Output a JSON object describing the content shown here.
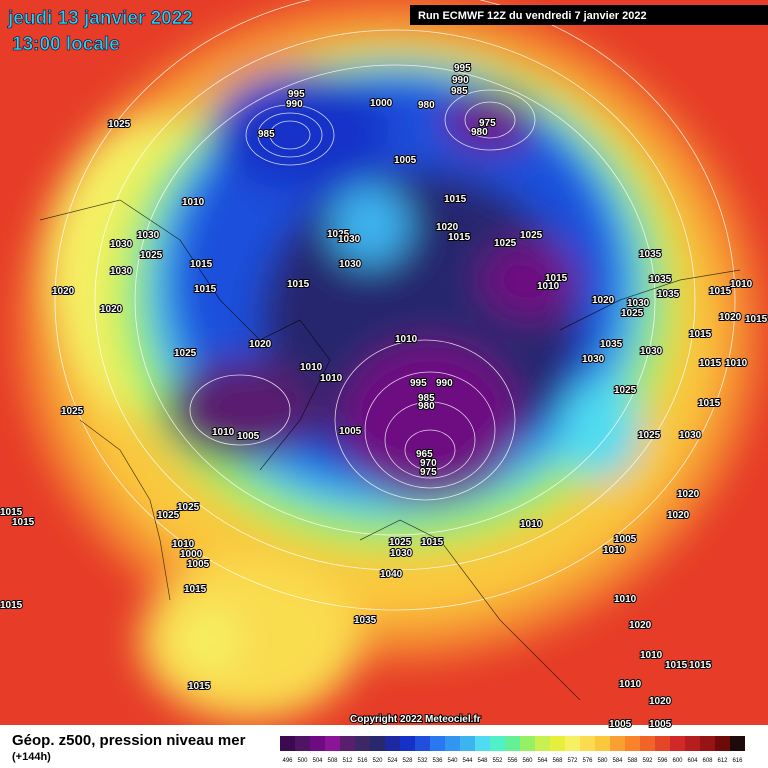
{
  "header": {
    "date": "jeudi 13 janvier 2022",
    "time": "13:00 locale",
    "run": "Run ECMWF 12Z du vendredi 7 janvier 2022"
  },
  "copyright": "Copyright 2022 Meteociel.fr",
  "footer": {
    "title": "Géop. z500, pression niveau mer",
    "lead": "(+144h)"
  },
  "colorbar": {
    "ticks": [
      496,
      500,
      504,
      508,
      512,
      516,
      520,
      524,
      528,
      532,
      536,
      540,
      544,
      548,
      552,
      556,
      560,
      564,
      568,
      572,
      576,
      580,
      584,
      588,
      592,
      596,
      600,
      604,
      608,
      612,
      616
    ],
    "colors": [
      "#3c0a50",
      "#501464",
      "#6e0a82",
      "#8c1496",
      "#5a1e6e",
      "#3c2864",
      "#28286e",
      "#1e28a0",
      "#1432c8",
      "#1e50dc",
      "#2878f0",
      "#3296f0",
      "#3cb4f0",
      "#50dcf0",
      "#50f0c8",
      "#64f096",
      "#96f064",
      "#c8f050",
      "#e6f03c",
      "#f5f064",
      "#fadc50",
      "#fac83c",
      "#faa032",
      "#fa8228",
      "#f06428",
      "#e64628",
      "#d22828",
      "#b41e1e",
      "#961414",
      "#6e0a0a",
      "#1e0a0a"
    ]
  },
  "isobar_labels": [
    1025,
    995,
    990,
    985,
    1000,
    995,
    990,
    985,
    980,
    975,
    980,
    1005,
    1010,
    1015,
    1030,
    1030,
    1025,
    1030,
    1015,
    1015,
    1020,
    1020,
    1025,
    1030,
    1020,
    1015,
    1025,
    1025,
    1030,
    1015,
    1015,
    1010,
    1035,
    1035,
    1035,
    1030,
    1025,
    1020,
    1015,
    1010,
    1020,
    1015,
    1015,
    1010,
    1035,
    1030,
    1030,
    1015,
    1025,
    1020,
    1010,
    1010,
    1010,
    995,
    990,
    985,
    980,
    1025,
    1015,
    1025,
    1010,
    1005,
    1005,
    965,
    970,
    975,
    1025,
    1030,
    1020,
    1020,
    1025,
    1025,
    1015,
    1015,
    1010,
    1010,
    1000,
    1005,
    1025,
    1015,
    1030,
    1005,
    1010,
    1040,
    1015,
    1015,
    1010,
    1035,
    1020,
    1010,
    1015,
    1015,
    1015,
    1010,
    1020,
    1005,
    1005
  ]
}
